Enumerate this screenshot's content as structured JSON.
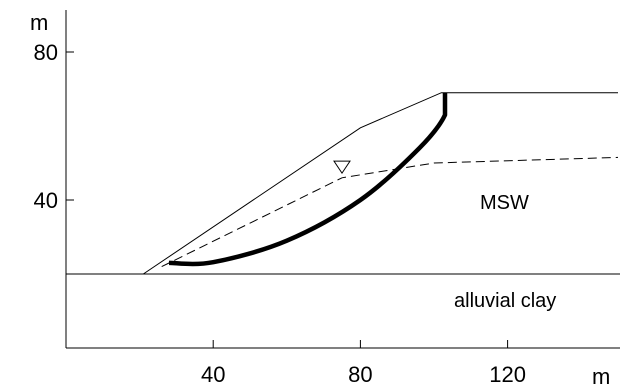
{
  "x_axis": {
    "unit": "m",
    "ticks": [
      {
        "value": 40,
        "label": "40"
      },
      {
        "value": 80,
        "label": "80"
      },
      {
        "value": 120,
        "label": "120"
      }
    ]
  },
  "y_axis": {
    "unit": "m",
    "ticks": [
      {
        "value": 40,
        "label": "40"
      },
      {
        "value": 80,
        "label": "80"
      }
    ]
  },
  "labels": {
    "waste": "MSW",
    "foundation": "alluvial clay"
  },
  "geometry_m": {
    "foundation_top_y": 20,
    "slope_surface": [
      [
        21,
        20
      ],
      [
        80,
        59.5
      ],
      [
        102,
        69
      ],
      [
        150,
        69
      ]
    ],
    "phreatic_surface": [
      [
        26,
        22
      ],
      [
        75,
        46
      ],
      [
        100,
        50
      ],
      [
        150,
        51.5
      ]
    ],
    "failure_surface": [
      [
        28,
        23
      ],
      [
        40,
        23.2
      ],
      [
        60,
        29
      ],
      [
        80,
        40
      ],
      [
        96,
        54
      ],
      [
        103,
        63
      ],
      [
        103,
        69
      ]
    ],
    "water_table_marker": [
      75,
      47
    ]
  },
  "colors": {
    "line": "#000000",
    "background": "#ffffff"
  }
}
